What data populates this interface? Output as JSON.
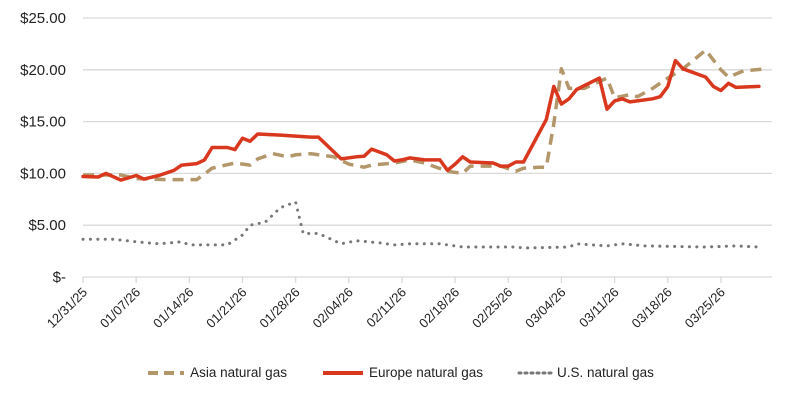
{
  "chart_data": {
    "type": "line",
    "title": "",
    "xlabel": "",
    "ylabel": "",
    "ylim": [
      0,
      25
    ],
    "y_ticks": [
      "$25.00",
      "$20.00",
      "$15.00",
      "$10.00",
      "$5.00",
      "$-"
    ],
    "y_tick_values": [
      25,
      20,
      15,
      10,
      5,
      0
    ],
    "x_ticks": [
      "12/31/25",
      "01/07/26",
      "01/14/26",
      "01/21/26",
      "01/28/26",
      "02/04/26",
      "02/11/26",
      "02/18/26",
      "02/25/26",
      "03/04/26",
      "03/11/26",
      "03/18/26",
      "03/25/26"
    ],
    "x_range": [
      "12/31/25",
      "03/31/26"
    ],
    "grid": "horizontal",
    "legend_position": "bottom",
    "series": [
      {
        "name": "Asia natural gas",
        "color": "#B3976B",
        "style": "dashed",
        "points": [
          [
            "12/31/25",
            9.85
          ],
          [
            "01/05/26",
            9.85
          ],
          [
            "01/07/26",
            9.5
          ],
          [
            "01/11/26",
            9.4
          ],
          [
            "01/15/26",
            9.4
          ],
          [
            "01/17/26",
            10.5
          ],
          [
            "01/20/26",
            11.0
          ],
          [
            "01/22/26",
            10.8
          ],
          [
            "01/23/26",
            11.4
          ],
          [
            "01/25/26",
            11.9
          ],
          [
            "01/27/26",
            11.6
          ],
          [
            "01/28/26",
            11.8
          ],
          [
            "01/30/26",
            11.9
          ],
          [
            "02/02/26",
            11.6
          ],
          [
            "02/04/26",
            10.9
          ],
          [
            "02/06/26",
            10.6
          ],
          [
            "02/07/26",
            10.8
          ],
          [
            "02/10/26",
            11.0
          ],
          [
            "02/12/26",
            11.3
          ],
          [
            "02/14/26",
            11.0
          ],
          [
            "02/17/26",
            10.2
          ],
          [
            "02/19/26",
            10.0
          ],
          [
            "02/20/26",
            10.7
          ],
          [
            "02/24/26",
            10.7
          ],
          [
            "02/26/26",
            10.2
          ],
          [
            "02/27/26",
            10.5
          ],
          [
            "03/01/26",
            10.6
          ],
          [
            "03/02/26",
            10.6
          ],
          [
            "03/03/26",
            14.8
          ],
          [
            "03/04/26",
            20.1
          ],
          [
            "03/05/26",
            18.2
          ],
          [
            "03/07/26",
            18.2
          ],
          [
            "03/10/26",
            19.2
          ],
          [
            "03/11/26",
            17.3
          ],
          [
            "03/13/26",
            17.6
          ],
          [
            "03/14/26",
            17.4
          ],
          [
            "03/16/26",
            18.2
          ],
          [
            "03/18/26",
            19.2
          ],
          [
            "03/20/26",
            20.1
          ],
          [
            "03/23/26",
            21.9
          ],
          [
            "03/25/26",
            20.0
          ],
          [
            "03/26/26",
            19.3
          ],
          [
            "03/28/26",
            19.9
          ],
          [
            "03/31/26",
            20.1
          ]
        ]
      },
      {
        "name": "Europe natural gas",
        "color": "#D9381E",
        "style": "solid",
        "points": [
          [
            "12/31/25",
            9.7
          ],
          [
            "01/02/26",
            9.65
          ],
          [
            "01/03/26",
            10.0
          ],
          [
            "01/05/26",
            9.35
          ],
          [
            "01/07/26",
            9.8
          ],
          [
            "01/08/26",
            9.45
          ],
          [
            "01/10/26",
            9.8
          ],
          [
            "01/12/26",
            10.3
          ],
          [
            "01/13/26",
            10.8
          ],
          [
            "01/15/26",
            10.95
          ],
          [
            "01/16/26",
            11.3
          ],
          [
            "01/17/26",
            12.5
          ],
          [
            "01/19/26",
            12.5
          ],
          [
            "01/20/26",
            12.3
          ],
          [
            "01/21/26",
            13.4
          ],
          [
            "01/22/26",
            13.1
          ],
          [
            "01/23/26",
            13.8
          ],
          [
            "01/26/26",
            13.7
          ],
          [
            "01/28/26",
            13.6
          ],
          [
            "01/29/26",
            13.55
          ],
          [
            "01/30/26",
            13.5
          ],
          [
            "01/31/26",
            13.5
          ],
          [
            "02/03/26",
            11.4
          ],
          [
            "02/05/26",
            11.6
          ],
          [
            "02/06/26",
            11.65
          ],
          [
            "02/07/26",
            12.35
          ],
          [
            "02/09/26",
            11.8
          ],
          [
            "02/10/26",
            11.2
          ],
          [
            "02/11/26",
            11.3
          ],
          [
            "02/12/26",
            11.5
          ],
          [
            "02/14/26",
            11.3
          ],
          [
            "02/16/26",
            11.3
          ],
          [
            "02/17/26",
            10.3
          ],
          [
            "02/18/26",
            10.9
          ],
          [
            "02/19/26",
            11.6
          ],
          [
            "02/20/26",
            11.1
          ],
          [
            "02/23/26",
            11.0
          ],
          [
            "02/24/26",
            10.7
          ],
          [
            "02/25/26",
            10.7
          ],
          [
            "02/26/26",
            11.1
          ],
          [
            "02/27/26",
            11.1
          ],
          [
            "03/02/26",
            15.2
          ],
          [
            "03/03/26",
            18.4
          ],
          [
            "03/04/26",
            16.7
          ],
          [
            "03/05/26",
            17.2
          ],
          [
            "03/06/26",
            18.1
          ],
          [
            "03/09/26",
            19.2
          ],
          [
            "03/10/26",
            16.2
          ],
          [
            "03/11/26",
            17.0
          ],
          [
            "03/12/26",
            17.2
          ],
          [
            "03/13/26",
            16.9
          ],
          [
            "03/16/26",
            17.2
          ],
          [
            "03/17/26",
            17.4
          ],
          [
            "03/18/26",
            18.4
          ],
          [
            "03/19/26",
            20.9
          ],
          [
            "03/20/26",
            20.1
          ],
          [
            "03/23/26",
            19.3
          ],
          [
            "03/24/26",
            18.4
          ],
          [
            "03/25/26",
            18.0
          ],
          [
            "03/26/26",
            18.7
          ],
          [
            "03/27/26",
            18.3
          ],
          [
            "03/30/26",
            18.4
          ]
        ]
      },
      {
        "name": "U.S. natural gas",
        "color": "#777777",
        "style": "dotted",
        "points": [
          [
            "12/31/25",
            3.65
          ],
          [
            "01/04/26",
            3.65
          ],
          [
            "01/07/26",
            3.4
          ],
          [
            "01/10/26",
            3.2
          ],
          [
            "01/13/26",
            3.4
          ],
          [
            "01/14/26",
            3.1
          ],
          [
            "01/19/26",
            3.1
          ],
          [
            "01/21/26",
            4.05
          ],
          [
            "01/22/26",
            5.0
          ],
          [
            "01/24/26",
            5.3
          ],
          [
            "01/26/26",
            6.7
          ],
          [
            "01/28/26",
            7.25
          ],
          [
            "01/29/26",
            4.2
          ],
          [
            "01/31/26",
            4.2
          ],
          [
            "02/03/26",
            3.2
          ],
          [
            "02/05/26",
            3.5
          ],
          [
            "02/08/26",
            3.3
          ],
          [
            "02/10/26",
            3.1
          ],
          [
            "02/12/26",
            3.2
          ],
          [
            "02/16/26",
            3.2
          ],
          [
            "02/19/26",
            2.9
          ],
          [
            "02/26/26",
            2.9
          ],
          [
            "02/27/26",
            2.8
          ],
          [
            "03/05/26",
            2.9
          ],
          [
            "03/06/26",
            3.2
          ],
          [
            "03/10/26",
            3.0
          ],
          [
            "03/12/26",
            3.2
          ],
          [
            "03/15/26",
            3.0
          ],
          [
            "03/23/26",
            2.9
          ],
          [
            "03/27/26",
            3.0
          ],
          [
            "03/30/26",
            2.9
          ]
        ]
      }
    ]
  }
}
